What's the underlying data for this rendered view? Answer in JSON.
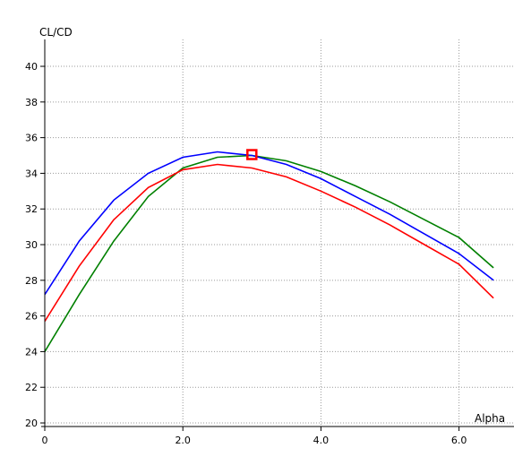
{
  "chart_data": {
    "type": "line",
    "xlabel": "Alpha",
    "ylabel": "CL/CD",
    "xlim": [
      0,
      6.5
    ],
    "ylim": [
      19.8,
      41.5
    ],
    "grid": true,
    "x_ticks": [
      {
        "value": 0,
        "label": "0"
      },
      {
        "value": 2,
        "label": "2.0"
      },
      {
        "value": 4,
        "label": "4.0"
      },
      {
        "value": 6,
        "label": "6.0"
      }
    ],
    "y_ticks": [
      {
        "value": 20,
        "label": "20"
      },
      {
        "value": 22,
        "label": "22"
      },
      {
        "value": 24,
        "label": "24"
      },
      {
        "value": 26,
        "label": "26"
      },
      {
        "value": 28,
        "label": "28"
      },
      {
        "value": 30,
        "label": "30"
      },
      {
        "value": 32,
        "label": "32"
      },
      {
        "value": 34,
        "label": "34"
      },
      {
        "value": 36,
        "label": "36"
      },
      {
        "value": 38,
        "label": "38"
      },
      {
        "value": 40,
        "label": "40"
      }
    ],
    "series": [
      {
        "color": "#0000ff",
        "x": [
          0,
          0.5,
          1.0,
          1.5,
          2.0,
          2.5,
          3.0,
          3.5,
          4.0,
          4.5,
          5.0,
          5.5,
          6.0,
          6.5
        ],
        "y": [
          27.2,
          30.2,
          32.5,
          34.0,
          34.9,
          35.2,
          35.0,
          34.5,
          33.7,
          32.7,
          31.7,
          30.6,
          29.5,
          28.0
        ]
      },
      {
        "color": "#ff0000",
        "x": [
          0,
          0.5,
          1.0,
          1.5,
          2.0,
          2.5,
          3.0,
          3.5,
          4.0,
          4.5,
          5.0,
          5.5,
          6.0,
          6.5
        ],
        "y": [
          25.7,
          28.8,
          31.4,
          33.2,
          34.2,
          34.5,
          34.3,
          33.8,
          33.0,
          32.1,
          31.1,
          30.0,
          28.9,
          27.0
        ]
      },
      {
        "color": "#008000",
        "x": [
          0,
          0.5,
          1.0,
          1.5,
          2.0,
          2.5,
          3.0,
          3.5,
          4.0,
          4.5,
          5.0,
          5.5,
          6.0,
          6.5
        ],
        "y": [
          24.0,
          27.2,
          30.2,
          32.7,
          34.3,
          34.9,
          35.0,
          34.7,
          34.1,
          33.3,
          32.4,
          31.4,
          30.4,
          28.7
        ]
      }
    ],
    "marker": {
      "x": 3.0,
      "y": 35.05,
      "color": "#ff0000"
    }
  }
}
